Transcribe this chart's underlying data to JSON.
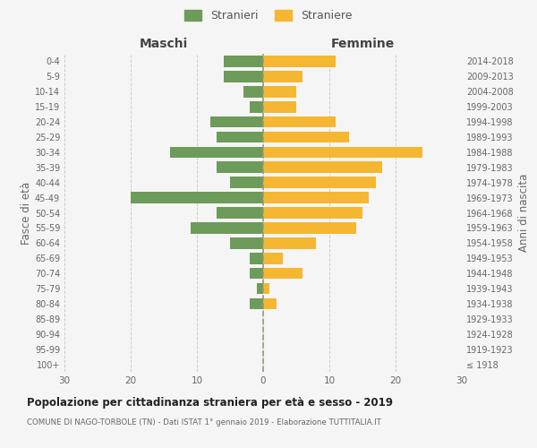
{
  "age_groups": [
    "100+",
    "95-99",
    "90-94",
    "85-89",
    "80-84",
    "75-79",
    "70-74",
    "65-69",
    "60-64",
    "55-59",
    "50-54",
    "45-49",
    "40-44",
    "35-39",
    "30-34",
    "25-29",
    "20-24",
    "15-19",
    "10-14",
    "5-9",
    "0-4"
  ],
  "birth_years": [
    "≤ 1918",
    "1919-1923",
    "1924-1928",
    "1929-1933",
    "1934-1938",
    "1939-1943",
    "1944-1948",
    "1949-1953",
    "1954-1958",
    "1959-1963",
    "1964-1968",
    "1969-1973",
    "1974-1978",
    "1979-1983",
    "1984-1988",
    "1989-1993",
    "1994-1998",
    "1999-2003",
    "2004-2008",
    "2009-2013",
    "2014-2018"
  ],
  "maschi": [
    0,
    0,
    0,
    0,
    2,
    1,
    2,
    2,
    5,
    11,
    7,
    20,
    5,
    7,
    14,
    7,
    8,
    2,
    3,
    6,
    6
  ],
  "femmine": [
    0,
    0,
    0,
    0,
    2,
    1,
    6,
    3,
    8,
    14,
    15,
    16,
    17,
    18,
    24,
    13,
    11,
    5,
    5,
    6,
    11
  ],
  "color_maschi": "#6d9b5a",
  "color_femmine": "#f5b731",
  "background_color": "#f5f5f5",
  "grid_color": "#cccccc",
  "title": "Popolazione per cittadinanza straniera per età e sesso - 2019",
  "subtitle": "COMUNE DI NAGO-TORBOLE (TN) - Dati ISTAT 1° gennaio 2019 - Elaborazione TUTTITALIA.IT",
  "xlabel_left": "Maschi",
  "xlabel_right": "Femmine",
  "ylabel_left": "Fasce di età",
  "ylabel_right": "Anni di nascita",
  "legend_maschi": "Stranieri",
  "legend_femmine": "Straniere",
  "xlim": 30,
  "dashed_line_color": "#999977"
}
